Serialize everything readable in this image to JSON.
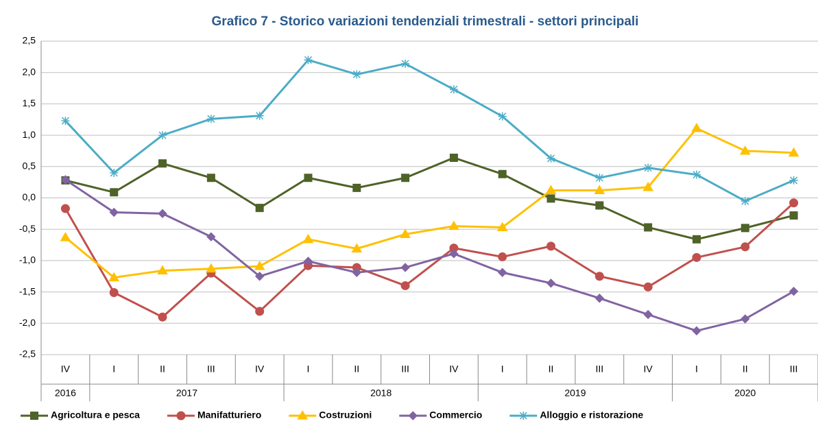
{
  "chart_data": {
    "type": "line",
    "title": "Grafico 7 - Storico variazioni tendenziali trimestrali - settori principali",
    "categories": [
      "IV",
      "I",
      "II",
      "III",
      "IV",
      "I",
      "II",
      "III",
      "IV",
      "I",
      "II",
      "III",
      "IV",
      "I",
      "II",
      "III"
    ],
    "year_groups": [
      {
        "name": "2016",
        "span": 1
      },
      {
        "name": "2017",
        "span": 4
      },
      {
        "name": "2018",
        "span": 4
      },
      {
        "name": "2019",
        "span": 4
      },
      {
        "name": "2020",
        "span": 3
      }
    ],
    "ylim": [
      -2.5,
      2.5
    ],
    "yticks": [
      {
        "value": -2.5,
        "label": "-2,5"
      },
      {
        "value": -2,
        "label": "-2,0"
      },
      {
        "value": -1.5,
        "label": "-1,5"
      },
      {
        "value": -1,
        "label": "-1,0"
      },
      {
        "value": -0.5,
        "label": "-0,5"
      },
      {
        "value": 0,
        "label": "0,0"
      },
      {
        "value": 0.5,
        "label": "0,5"
      },
      {
        "value": 1,
        "label": "1,0"
      },
      {
        "value": 1.5,
        "label": "1,5"
      },
      {
        "value": 2,
        "label": "2,0"
      },
      {
        "value": 2.5,
        "label": "2,5"
      }
    ],
    "grid": true,
    "legend": "bottom",
    "series": [
      {
        "name": "Agricoltura e pesca",
        "color": "#4f6228",
        "marker": "square",
        "values": [
          0.28,
          0.09,
          0.55,
          0.32,
          -0.16,
          0.32,
          0.16,
          0.32,
          0.64,
          0.38,
          -0.01,
          -0.12,
          -0.47,
          -0.66,
          -0.48,
          -0.28
        ]
      },
      {
        "name": "Manifatturiero",
        "color": "#c0504d",
        "marker": "circle",
        "values": [
          -0.17,
          -1.51,
          -1.9,
          -1.2,
          -1.81,
          -1.08,
          -1.11,
          -1.4,
          -0.8,
          -0.94,
          -0.77,
          -1.25,
          -1.42,
          -0.95,
          -0.78,
          -0.08
        ]
      },
      {
        "name": "Costruzioni",
        "color": "#ffc000",
        "marker": "triangle",
        "values": [
          -0.63,
          -1.27,
          -1.16,
          -1.13,
          -1.09,
          -0.66,
          -0.81,
          -0.58,
          -0.45,
          -0.47,
          0.12,
          0.12,
          0.17,
          1.11,
          0.75,
          0.72
        ]
      },
      {
        "name": "Commercio",
        "color": "#8064a2",
        "marker": "diamond",
        "values": [
          0.29,
          -0.23,
          -0.25,
          -0.62,
          -1.25,
          -1.01,
          -1.19,
          -1.11,
          -0.89,
          -1.19,
          -1.36,
          -1.6,
          -1.86,
          -2.12,
          -1.93,
          -1.49
        ]
      },
      {
        "name": "Alloggio e ristorazione",
        "color": "#4bacc6",
        "marker": "star",
        "values": [
          1.23,
          0.4,
          1.0,
          1.26,
          1.31,
          2.2,
          1.97,
          2.14,
          1.73,
          1.3,
          0.63,
          0.32,
          0.48,
          0.37,
          -0.05,
          0.28
        ]
      }
    ]
  }
}
